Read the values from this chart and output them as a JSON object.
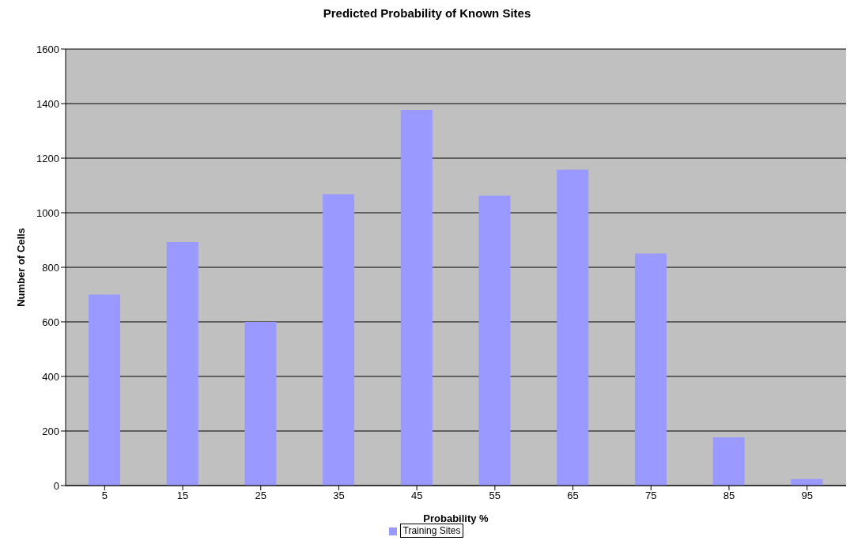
{
  "chart_data": {
    "type": "bar",
    "title": "Predicted Probability of Known Sites",
    "xlabel": "Probability %",
    "ylabel": "Number of Cells",
    "categories": [
      "5",
      "15",
      "25",
      "35",
      "45",
      "55",
      "65",
      "75",
      "85",
      "95"
    ],
    "series": [
      {
        "name": "Training Sites",
        "color": "#9999ff",
        "values": [
          700,
          893,
          600,
          1068,
          1377,
          1062,
          1158,
          851,
          177,
          24
        ]
      }
    ],
    "ylim": [
      0,
      1600
    ],
    "yticks": [
      0,
      200,
      400,
      600,
      800,
      1000,
      1200,
      1400,
      1600
    ],
    "grid": "y",
    "legend": "bottom"
  }
}
